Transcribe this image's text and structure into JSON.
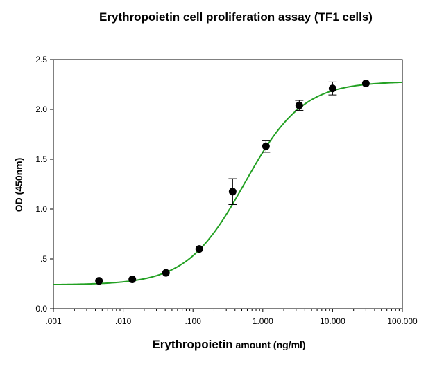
{
  "chart_data": {
    "type": "scatter",
    "title": "Erythropoietin cell proliferation assay (TF1 cells)",
    "xlabel_main": "Erythropoietin",
    "xlabel_suffix": " amount (ng/ml)",
    "ylabel": "OD (450nm)",
    "x_scale": "log",
    "xlim": [
      0.001,
      100
    ],
    "ylim": [
      0,
      2.5
    ],
    "x_ticks": [
      0.001,
      0.01,
      0.1,
      1,
      10,
      100
    ],
    "x_tick_labels": [
      ".001",
      ".010",
      ".100",
      "1.000",
      "10.000",
      "100.000"
    ],
    "y_ticks": [
      0,
      0.5,
      1,
      1.5,
      2,
      2.5
    ],
    "y_tick_labels": [
      "0.0",
      ".5",
      "1.0",
      "1.5",
      "2.0",
      "2.5"
    ],
    "grid": false,
    "series": [
      {
        "points": [
          {
            "x": 0.0045,
            "y": 0.28,
            "err": 0.0
          },
          {
            "x": 0.0135,
            "y": 0.295,
            "err": 0.0
          },
          {
            "x": 0.041,
            "y": 0.36,
            "err": 0.0
          },
          {
            "x": 0.123,
            "y": 0.6,
            "err": 0.0
          },
          {
            "x": 0.37,
            "y": 1.175,
            "err": 0.13
          },
          {
            "x": 1.11,
            "y": 1.63,
            "err": 0.06
          },
          {
            "x": 3.33,
            "y": 2.04,
            "err": 0.05
          },
          {
            "x": 10.0,
            "y": 2.21,
            "err": 0.065
          },
          {
            "x": 30.0,
            "y": 2.26,
            "err": 0.0
          }
        ],
        "fit": {
          "model": "4PL",
          "bottom": 0.24,
          "top": 2.28,
          "ec50": 0.55,
          "hill": 1.05
        }
      }
    ],
    "colors": {
      "fit_line": "#22a022",
      "markers": "#000000",
      "axis": "#000000"
    }
  }
}
